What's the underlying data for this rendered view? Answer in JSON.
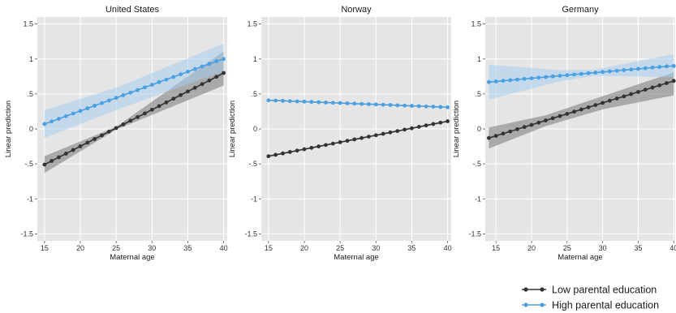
{
  "chart_data": [
    {
      "type": "line",
      "title": "United States",
      "xlabel": "Maternal age",
      "ylabel": "Linear prediction",
      "xlim": [
        14,
        40.5
      ],
      "ylim": [
        -1.6,
        1.6
      ],
      "xticks": [
        15,
        20,
        25,
        30,
        35,
        40
      ],
      "yticks": [
        -1.5,
        -1,
        -0.5,
        0,
        0.5,
        1,
        1.5
      ],
      "ytick_labels": [
        "-1.5",
        "-1",
        "-.5",
        "0",
        ".5",
        "1",
        "1.5"
      ],
      "grid": true,
      "series": [
        {
          "name": "Low parental education",
          "x": [
            15,
            16,
            17,
            18,
            19,
            20,
            21,
            22,
            23,
            24,
            25,
            26,
            27,
            28,
            29,
            30,
            31,
            32,
            33,
            34,
            35,
            36,
            37,
            38,
            39,
            40
          ],
          "values": [
            -0.51,
            -0.458,
            -0.405,
            -0.353,
            -0.301,
            -0.248,
            -0.196,
            -0.144,
            -0.092,
            -0.039,
            0.013,
            0.065,
            0.118,
            0.17,
            0.222,
            0.275,
            0.327,
            0.379,
            0.432,
            0.484,
            0.536,
            0.588,
            0.641,
            0.693,
            0.745,
            0.8
          ],
          "ci_low": [
            -0.63,
            -0.568,
            -0.506,
            -0.444,
            -0.382,
            -0.32,
            -0.258,
            -0.196,
            -0.134,
            -0.072,
            -0.01,
            0.032,
            0.074,
            0.116,
            0.158,
            0.2,
            0.242,
            0.284,
            0.326,
            0.368,
            0.41,
            0.452,
            0.494,
            0.536,
            0.578,
            0.62
          ],
          "ci_high": [
            -0.39,
            -0.348,
            -0.306,
            -0.264,
            -0.222,
            -0.18,
            -0.138,
            -0.096,
            -0.054,
            -0.012,
            0.03,
            0.102,
            0.174,
            0.246,
            0.318,
            0.39,
            0.462,
            0.534,
            0.606,
            0.678,
            0.75,
            0.822,
            0.894,
            0.966,
            1.038,
            1.11
          ],
          "color": "#333333",
          "band_color": "#808080"
        },
        {
          "name": "High parental education",
          "x": [
            15,
            16,
            17,
            18,
            19,
            20,
            21,
            22,
            23,
            24,
            25,
            26,
            27,
            28,
            29,
            30,
            31,
            32,
            33,
            34,
            35,
            36,
            37,
            38,
            39,
            40
          ],
          "values": [
            0.07,
            0.107,
            0.145,
            0.182,
            0.22,
            0.257,
            0.295,
            0.332,
            0.369,
            0.407,
            0.444,
            0.482,
            0.519,
            0.556,
            0.594,
            0.631,
            0.669,
            0.706,
            0.743,
            0.781,
            0.818,
            0.856,
            0.893,
            0.93,
            0.968,
            1.0
          ],
          "ci_low": [
            -0.13,
            -0.09,
            -0.05,
            -0.01,
            0.03,
            0.07,
            0.11,
            0.15,
            0.19,
            0.23,
            0.27,
            0.307,
            0.344,
            0.381,
            0.418,
            0.455,
            0.492,
            0.529,
            0.566,
            0.603,
            0.64,
            0.677,
            0.714,
            0.751,
            0.788,
            0.82
          ],
          "ci_high": [
            0.27,
            0.302,
            0.334,
            0.366,
            0.398,
            0.43,
            0.462,
            0.494,
            0.526,
            0.558,
            0.59,
            0.632,
            0.674,
            0.716,
            0.758,
            0.8,
            0.842,
            0.884,
            0.926,
            0.968,
            1.01,
            1.052,
            1.094,
            1.136,
            1.178,
            1.22
          ],
          "color": "#4a9fe0",
          "band_color": "#a9cdf0"
        }
      ]
    },
    {
      "type": "line",
      "title": "Norway",
      "xlabel": "Maternal age",
      "ylabel": "Linear prediction",
      "xlim": [
        14,
        40.5
      ],
      "ylim": [
        -1.6,
        1.6
      ],
      "xticks": [
        15,
        20,
        25,
        30,
        35,
        40
      ],
      "yticks": [
        -1.5,
        -1,
        -0.5,
        0,
        0.5,
        1,
        1.5
      ],
      "ytick_labels": [
        "-1.5",
        "-1",
        "-.5",
        "0",
        ".5",
        "1",
        "1.5"
      ],
      "grid": true,
      "series": [
        {
          "name": "Low parental education",
          "x": [
            15,
            16,
            17,
            18,
            19,
            20,
            21,
            22,
            23,
            24,
            25,
            26,
            27,
            28,
            29,
            30,
            31,
            32,
            33,
            34,
            35,
            36,
            37,
            38,
            39,
            40
          ],
          "values": [
            -0.39,
            -0.37,
            -0.35,
            -0.33,
            -0.31,
            -0.29,
            -0.27,
            -0.25,
            -0.23,
            -0.21,
            -0.19,
            -0.17,
            -0.15,
            -0.13,
            -0.11,
            -0.09,
            -0.07,
            -0.05,
            -0.03,
            -0.01,
            0.01,
            0.03,
            0.05,
            0.07,
            0.09,
            0.11
          ],
          "ci_low": [
            -0.4,
            -0.38,
            -0.36,
            -0.34,
            -0.32,
            -0.3,
            -0.28,
            -0.26,
            -0.24,
            -0.22,
            -0.2,
            -0.18,
            -0.16,
            -0.14,
            -0.12,
            -0.1,
            -0.08,
            -0.06,
            -0.04,
            -0.02,
            0.0,
            0.02,
            0.04,
            0.06,
            0.08,
            0.1
          ],
          "ci_high": [
            -0.38,
            -0.36,
            -0.34,
            -0.32,
            -0.3,
            -0.28,
            -0.26,
            -0.24,
            -0.22,
            -0.2,
            -0.18,
            -0.16,
            -0.14,
            -0.12,
            -0.1,
            -0.08,
            -0.06,
            -0.04,
            -0.02,
            0.0,
            0.02,
            0.04,
            0.06,
            0.08,
            0.1,
            0.12
          ],
          "color": "#333333",
          "band_color": "#808080"
        },
        {
          "name": "High parental education",
          "x": [
            15,
            16,
            17,
            18,
            19,
            20,
            21,
            22,
            23,
            24,
            25,
            26,
            27,
            28,
            29,
            30,
            31,
            32,
            33,
            34,
            35,
            36,
            37,
            38,
            39,
            40
          ],
          "values": [
            0.41,
            0.406,
            0.402,
            0.398,
            0.394,
            0.39,
            0.386,
            0.382,
            0.378,
            0.374,
            0.37,
            0.366,
            0.362,
            0.358,
            0.354,
            0.35,
            0.346,
            0.342,
            0.338,
            0.334,
            0.33,
            0.326,
            0.322,
            0.318,
            0.314,
            0.31
          ],
          "ci_low": [
            0.4,
            0.396,
            0.392,
            0.388,
            0.384,
            0.38,
            0.376,
            0.372,
            0.368,
            0.364,
            0.36,
            0.356,
            0.352,
            0.348,
            0.344,
            0.34,
            0.336,
            0.332,
            0.328,
            0.324,
            0.32,
            0.316,
            0.312,
            0.308,
            0.304,
            0.3
          ],
          "ci_high": [
            0.42,
            0.416,
            0.412,
            0.408,
            0.404,
            0.4,
            0.396,
            0.392,
            0.388,
            0.384,
            0.38,
            0.376,
            0.372,
            0.368,
            0.364,
            0.36,
            0.356,
            0.352,
            0.348,
            0.344,
            0.34,
            0.336,
            0.332,
            0.328,
            0.324,
            0.32
          ],
          "color": "#4a9fe0",
          "band_color": "#a9cdf0"
        }
      ]
    },
    {
      "type": "line",
      "title": "Germany",
      "xlabel": "Maternal age",
      "ylabel": "Linear prediction",
      "xlim": [
        13.5,
        40.2
      ],
      "ylim": [
        -1.6,
        1.6
      ],
      "xticks": [
        15,
        20,
        25,
        30,
        35,
        40
      ],
      "yticks": [
        -1.5,
        -1,
        -0.5,
        0,
        0.5,
        1,
        1.5
      ],
      "ytick_labels": [
        "-1.5",
        "-1",
        "-.5",
        "0",
        ".5",
        "1",
        "1.5"
      ],
      "grid": true,
      "series": [
        {
          "name": "Low parental education",
          "x": [
            14,
            15,
            16,
            17,
            18,
            19,
            20,
            21,
            22,
            23,
            24,
            25,
            26,
            27,
            28,
            29,
            30,
            31,
            32,
            33,
            34,
            35,
            36,
            37,
            38,
            39,
            40
          ],
          "values": [
            -0.13,
            -0.099,
            -0.067,
            -0.036,
            -0.004,
            0.027,
            0.058,
            0.09,
            0.121,
            0.153,
            0.184,
            0.215,
            0.247,
            0.278,
            0.309,
            0.341,
            0.372,
            0.404,
            0.435,
            0.466,
            0.498,
            0.529,
            0.561,
            0.592,
            0.623,
            0.655,
            0.686
          ],
          "ci_low": [
            -0.28,
            -0.24,
            -0.2,
            -0.16,
            -0.12,
            -0.08,
            -0.04,
            0.0,
            0.04,
            0.07,
            0.1,
            0.13,
            0.16,
            0.19,
            0.22,
            0.25,
            0.28,
            0.3,
            0.32,
            0.34,
            0.36,
            0.38,
            0.4,
            0.42,
            0.44,
            0.46,
            0.48
          ],
          "ci_high": [
            0.02,
            0.042,
            0.064,
            0.086,
            0.108,
            0.13,
            0.152,
            0.174,
            0.196,
            0.23,
            0.264,
            0.298,
            0.332,
            0.366,
            0.4,
            0.434,
            0.468,
            0.502,
            0.536,
            0.57,
            0.604,
            0.638,
            0.672,
            0.706,
            0.74,
            0.774,
            0.81
          ],
          "color": "#333333",
          "band_color": "#808080"
        },
        {
          "name": "High parental education",
          "x": [
            14,
            15,
            16,
            17,
            18,
            19,
            20,
            21,
            22,
            23,
            24,
            25,
            26,
            27,
            28,
            29,
            30,
            31,
            32,
            33,
            34,
            35,
            36,
            37,
            38,
            39,
            40
          ],
          "values": [
            0.67,
            0.679,
            0.688,
            0.697,
            0.706,
            0.715,
            0.724,
            0.733,
            0.742,
            0.751,
            0.76,
            0.769,
            0.778,
            0.787,
            0.796,
            0.805,
            0.814,
            0.823,
            0.832,
            0.841,
            0.85,
            0.859,
            0.868,
            0.877,
            0.886,
            0.895,
            0.9
          ],
          "ci_low": [
            0.42,
            0.446,
            0.472,
            0.498,
            0.524,
            0.55,
            0.576,
            0.602,
            0.628,
            0.654,
            0.68,
            0.696,
            0.712,
            0.728,
            0.744,
            0.76,
            0.758,
            0.756,
            0.754,
            0.752,
            0.75,
            0.748,
            0.746,
            0.744,
            0.742,
            0.74,
            0.74
          ],
          "ci_high": [
            0.92,
            0.912,
            0.904,
            0.896,
            0.888,
            0.88,
            0.872,
            0.864,
            0.856,
            0.848,
            0.84,
            0.842,
            0.844,
            0.846,
            0.848,
            0.85,
            0.87,
            0.89,
            0.91,
            0.93,
            0.95,
            0.97,
            0.99,
            1.01,
            1.03,
            1.05,
            1.07
          ],
          "color": "#4a9fe0",
          "band_color": "#a9cdf0"
        }
      ]
    }
  ],
  "legend": {
    "position": "bottom-right",
    "items": [
      {
        "label": "Low parental education",
        "color": "#333333"
      },
      {
        "label": "High parental education",
        "color": "#4a9fe0"
      }
    ]
  }
}
